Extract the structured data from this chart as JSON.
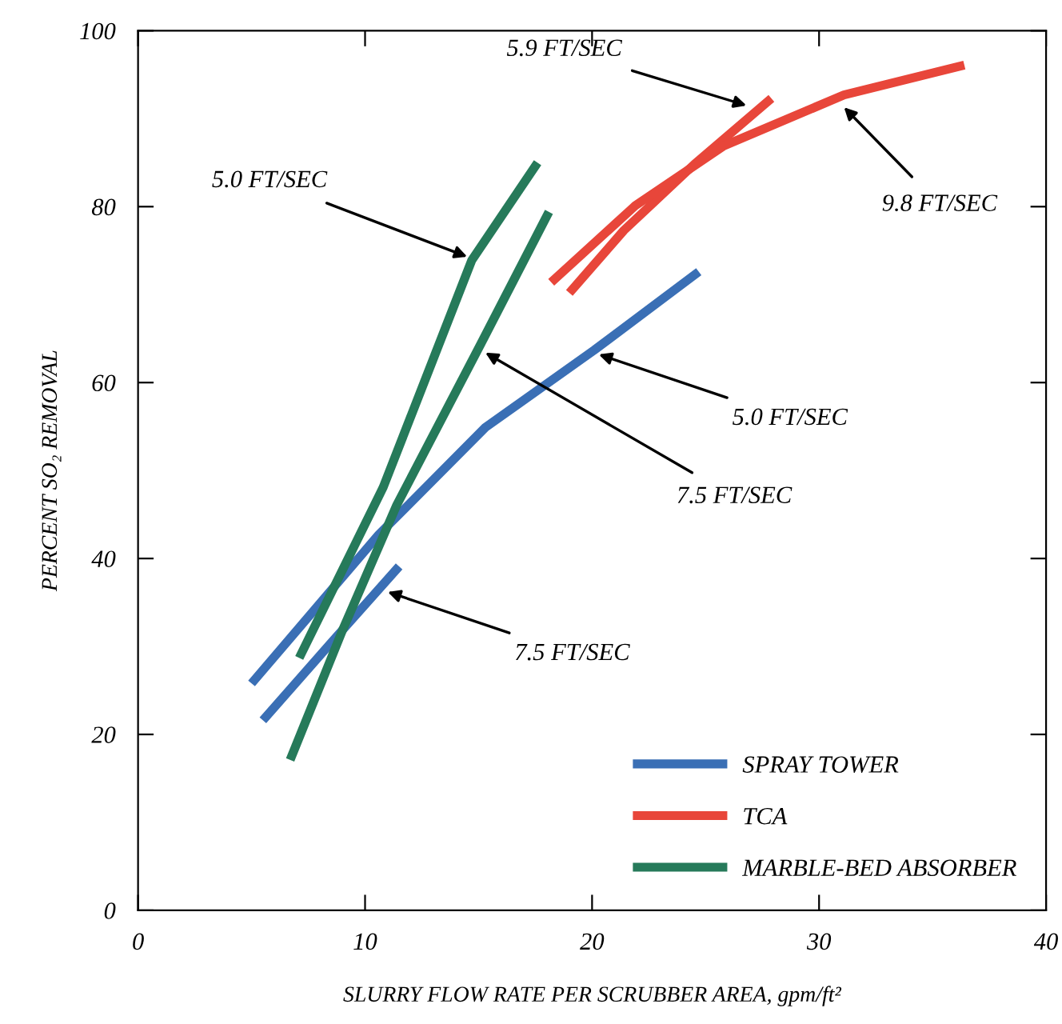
{
  "chart_data": {
    "type": "line",
    "xlabel": "SLURRY FLOW RATE PER SCRUBBER AREA, gpm/ft²",
    "ylabel": "PERCENT SO₂ REMOVAL",
    "xlim": [
      0,
      40
    ],
    "xticks": [
      0,
      10,
      20,
      30,
      40
    ],
    "ylim": [
      0,
      100
    ],
    "yticks": [
      0,
      20,
      40,
      60,
      80,
      100
    ],
    "grid": false,
    "legend": "bottom right",
    "line_style": "solid",
    "marker": "none",
    "series": [
      {
        "name": "SPRAY TOWER",
        "color": "#3a6fb5",
        "x": [
          5.0,
          10.6,
          15.3,
          20.1,
          24.7
        ],
        "values": [
          25.8,
          42.7,
          54.9,
          63.7,
          72.6
        ]
      },
      {
        "color": "#3a6fb5",
        "x": [
          5.5,
          8.5,
          11.5
        ],
        "values": [
          21.6,
          30.4,
          39.1
        ]
      },
      {
        "name": "TCA",
        "color": "#e8463a",
        "x": [
          19.0,
          21.4,
          24.5,
          27.9
        ],
        "values": [
          70.2,
          77.3,
          84.8,
          92.3
        ]
      },
      {
        "color": "#e8463a",
        "x": [
          18.2,
          21.9,
          25.8,
          31.1,
          36.4
        ],
        "values": [
          71.4,
          80.1,
          86.9,
          92.7,
          96.1
        ]
      },
      {
        "name": "MARBLE-BED ABSORBER",
        "color": "#267a5a",
        "x": [
          7.1,
          10.8,
          14.7,
          17.6
        ],
        "values": [
          28.7,
          48.1,
          73.9,
          85.0
        ]
      },
      {
        "color": "#267a5a",
        "x": [
          6.7,
          9.0,
          11.4,
          15.1,
          18.1
        ],
        "values": [
          17.1,
          31.8,
          46.1,
          64.4,
          79.4
        ]
      }
    ],
    "annotations": [
      {
        "text": "5.9 FT/SEC",
        "x": 26.8,
        "y": 91.5
      },
      {
        "text": "9.8 FT/SEC",
        "x": 31.1,
        "y": 91.3
      },
      {
        "text": "5.0 FT/SEC",
        "x": 14.5,
        "y": 74.3
      },
      {
        "text": "5.0 FT/SEC",
        "x": 20.3,
        "y": 63.2
      },
      {
        "text": "7.5 FT/SEC",
        "x": 15.3,
        "y": 63.4
      },
      {
        "text": "7.5 FT/SEC",
        "x": 11.0,
        "y": 36.2
      }
    ]
  }
}
